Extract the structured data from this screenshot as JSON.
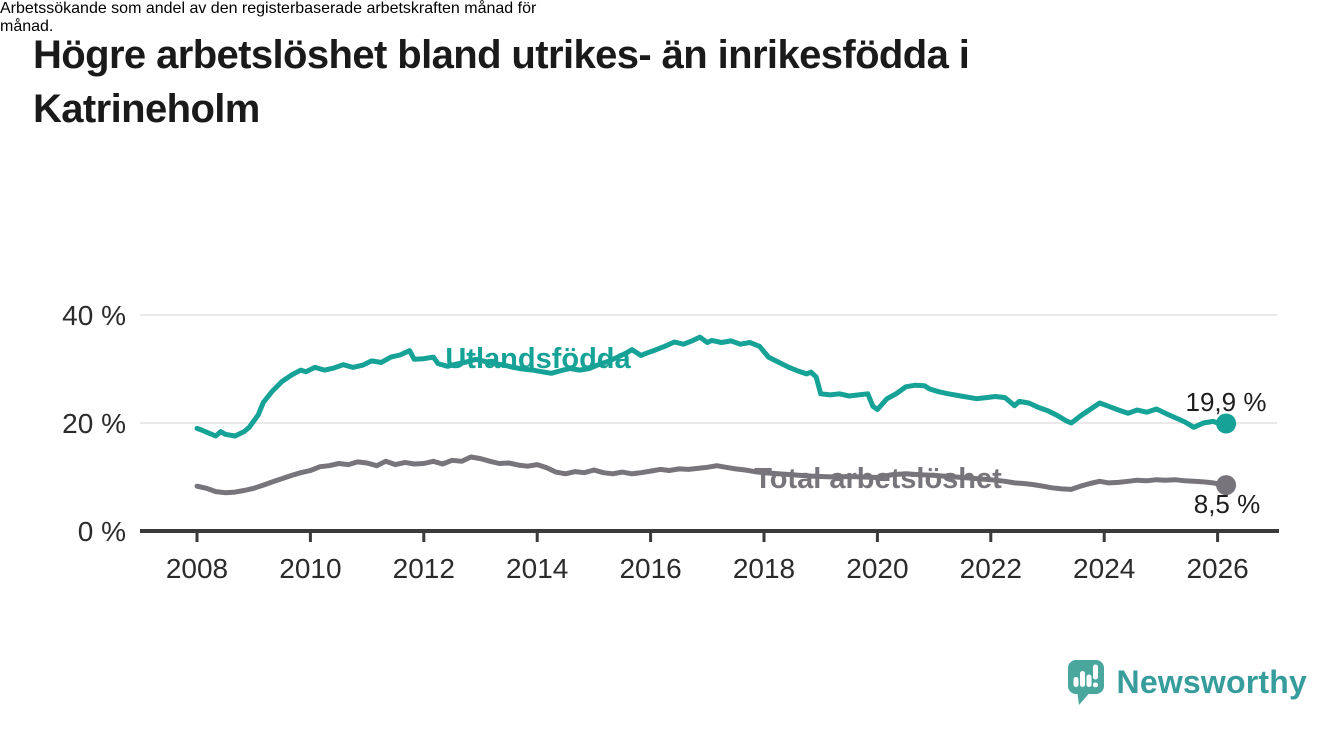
{
  "header": {
    "title_lines": [
      "Högre arbetslöshet bland utrikes- än inrikesfödda i",
      "Katrineholm"
    ],
    "subtitle_lines": [
      "Arbetssökande som andel av den registerbaserade arbetskraften månad för",
      "månad."
    ]
  },
  "chart_data": {
    "type": "line",
    "title": "Högre arbetslöshet bland utrikes- än inrikesfödda i Katrineholm",
    "subtitle": "Arbetssökande som andel av den registerbaserade arbetskraften månad för månad.",
    "unit": "%",
    "grid": "horizontal",
    "legend_position": "inline-labels",
    "text_color": "#2b2b2b",
    "grid_color": "#e2e2e2",
    "axis_color": "#3a3a3a",
    "x_axis": {
      "label_years": [
        2008,
        2010,
        2012,
        2014,
        2016,
        2018,
        2020,
        2022,
        2024,
        2026
      ],
      "range": [
        2007.0,
        2027.1
      ]
    },
    "y_axis": {
      "ticks": [
        {
          "value": 40,
          "label": "40 %"
        },
        {
          "value": 20,
          "label": "20 %"
        },
        {
          "value": 0,
          "label": "0 %"
        }
      ],
      "range": [
        0,
        43
      ]
    },
    "series": [
      {
        "name": "Utlandsfödda",
        "color": "#16A296",
        "end_label": "19,9 %",
        "last_value": 19.9,
        "points": [
          [
            2008.0,
            19.0
          ],
          [
            2008.08,
            18.7
          ],
          [
            2008.17,
            18.3
          ],
          [
            2008.33,
            17.6
          ],
          [
            2008.42,
            18.4
          ],
          [
            2008.5,
            17.9
          ],
          [
            2008.67,
            17.6
          ],
          [
            2008.83,
            18.4
          ],
          [
            2008.92,
            19.2
          ],
          [
            2009.08,
            21.5
          ],
          [
            2009.17,
            23.8
          ],
          [
            2009.33,
            25.9
          ],
          [
            2009.5,
            27.7
          ],
          [
            2009.67,
            28.9
          ],
          [
            2009.83,
            29.8
          ],
          [
            2009.92,
            29.5
          ],
          [
            2010.08,
            30.3
          ],
          [
            2010.25,
            29.8
          ],
          [
            2010.42,
            30.2
          ],
          [
            2010.58,
            30.8
          ],
          [
            2010.75,
            30.3
          ],
          [
            2010.92,
            30.7
          ],
          [
            2011.08,
            31.5
          ],
          [
            2011.25,
            31.2
          ],
          [
            2011.42,
            32.2
          ],
          [
            2011.58,
            32.6
          ],
          [
            2011.75,
            33.4
          ],
          [
            2011.83,
            31.8
          ],
          [
            2012.0,
            31.9
          ],
          [
            2012.17,
            32.2
          ],
          [
            2012.25,
            31.0
          ],
          [
            2012.42,
            30.5
          ],
          [
            2012.58,
            30.9
          ],
          [
            2012.75,
            31.3
          ],
          [
            2012.92,
            31.8
          ],
          [
            2013.08,
            31.4
          ],
          [
            2013.25,
            31.0
          ],
          [
            2013.42,
            30.7
          ],
          [
            2013.58,
            30.3
          ],
          [
            2013.75,
            30.0
          ],
          [
            2013.92,
            29.8
          ],
          [
            2014.08,
            29.5
          ],
          [
            2014.25,
            29.2
          ],
          [
            2014.42,
            29.7
          ],
          [
            2014.58,
            30.1
          ],
          [
            2014.75,
            29.8
          ],
          [
            2014.92,
            30.1
          ],
          [
            2015.08,
            30.8
          ],
          [
            2015.25,
            31.4
          ],
          [
            2015.42,
            32.2
          ],
          [
            2015.58,
            33.0
          ],
          [
            2015.67,
            33.6
          ],
          [
            2015.83,
            32.5
          ],
          [
            2015.92,
            32.9
          ],
          [
            2016.08,
            33.5
          ],
          [
            2016.25,
            34.2
          ],
          [
            2016.42,
            35.0
          ],
          [
            2016.58,
            34.6
          ],
          [
            2016.75,
            35.3
          ],
          [
            2016.87,
            35.9
          ],
          [
            2017.0,
            34.9
          ],
          [
            2017.08,
            35.3
          ],
          [
            2017.25,
            34.9
          ],
          [
            2017.42,
            35.2
          ],
          [
            2017.58,
            34.6
          ],
          [
            2017.75,
            34.9
          ],
          [
            2017.92,
            34.2
          ],
          [
            2018.08,
            32.2
          ],
          [
            2018.25,
            31.3
          ],
          [
            2018.42,
            30.4
          ],
          [
            2018.58,
            29.7
          ],
          [
            2018.75,
            29.1
          ],
          [
            2018.83,
            29.4
          ],
          [
            2018.92,
            28.5
          ],
          [
            2019.0,
            25.4
          ],
          [
            2019.17,
            25.2
          ],
          [
            2019.33,
            25.4
          ],
          [
            2019.5,
            25.0
          ],
          [
            2019.67,
            25.2
          ],
          [
            2019.83,
            25.4
          ],
          [
            2019.92,
            23.1
          ],
          [
            2020.0,
            22.5
          ],
          [
            2020.17,
            24.5
          ],
          [
            2020.33,
            25.4
          ],
          [
            2020.5,
            26.7
          ],
          [
            2020.67,
            27.0
          ],
          [
            2020.83,
            26.9
          ],
          [
            2020.92,
            26.3
          ],
          [
            2021.08,
            25.8
          ],
          [
            2021.25,
            25.4
          ],
          [
            2021.42,
            25.1
          ],
          [
            2021.58,
            24.8
          ],
          [
            2021.75,
            24.5
          ],
          [
            2021.92,
            24.7
          ],
          [
            2022.08,
            24.9
          ],
          [
            2022.25,
            24.7
          ],
          [
            2022.42,
            23.2
          ],
          [
            2022.5,
            24.0
          ],
          [
            2022.67,
            23.7
          ],
          [
            2022.83,
            22.9
          ],
          [
            2023.0,
            22.3
          ],
          [
            2023.17,
            21.4
          ],
          [
            2023.33,
            20.4
          ],
          [
            2023.42,
            20.0
          ],
          [
            2023.58,
            21.3
          ],
          [
            2023.75,
            22.5
          ],
          [
            2023.92,
            23.7
          ],
          [
            2024.08,
            23.1
          ],
          [
            2024.25,
            22.4
          ],
          [
            2024.42,
            21.8
          ],
          [
            2024.58,
            22.4
          ],
          [
            2024.75,
            22.0
          ],
          [
            2024.92,
            22.6
          ],
          [
            2025.08,
            21.8
          ],
          [
            2025.25,
            21.0
          ],
          [
            2025.42,
            20.2
          ],
          [
            2025.58,
            19.2
          ],
          [
            2025.75,
            20.0
          ],
          [
            2025.92,
            20.3
          ],
          [
            2026.08,
            19.7
          ],
          [
            2026.15,
            19.9
          ]
        ]
      },
      {
        "name": "Total arbetslöshet",
        "color": "#77757B",
        "end_label": "8,5 %",
        "last_value": 8.5,
        "points": [
          [
            2008.0,
            8.3
          ],
          [
            2008.17,
            7.9
          ],
          [
            2008.33,
            7.3
          ],
          [
            2008.5,
            7.1
          ],
          [
            2008.67,
            7.2
          ],
          [
            2008.83,
            7.5
          ],
          [
            2009.0,
            7.9
          ],
          [
            2009.17,
            8.5
          ],
          [
            2009.33,
            9.1
          ],
          [
            2009.5,
            9.7
          ],
          [
            2009.67,
            10.3
          ],
          [
            2009.83,
            10.8
          ],
          [
            2010.0,
            11.2
          ],
          [
            2010.17,
            11.9
          ],
          [
            2010.33,
            12.1
          ],
          [
            2010.5,
            12.5
          ],
          [
            2010.67,
            12.3
          ],
          [
            2010.83,
            12.8
          ],
          [
            2011.0,
            12.6
          ],
          [
            2011.17,
            12.1
          ],
          [
            2011.33,
            12.9
          ],
          [
            2011.5,
            12.3
          ],
          [
            2011.67,
            12.7
          ],
          [
            2011.83,
            12.4
          ],
          [
            2012.0,
            12.5
          ],
          [
            2012.17,
            12.9
          ],
          [
            2012.33,
            12.4
          ],
          [
            2012.5,
            13.1
          ],
          [
            2012.67,
            12.9
          ],
          [
            2012.83,
            13.7
          ],
          [
            2013.0,
            13.4
          ],
          [
            2013.17,
            12.9
          ],
          [
            2013.33,
            12.5
          ],
          [
            2013.5,
            12.6
          ],
          [
            2013.67,
            12.2
          ],
          [
            2013.83,
            12.0
          ],
          [
            2014.0,
            12.3
          ],
          [
            2014.17,
            11.7
          ],
          [
            2014.33,
            10.9
          ],
          [
            2014.5,
            10.6
          ],
          [
            2014.67,
            11.0
          ],
          [
            2014.83,
            10.8
          ],
          [
            2015.0,
            11.3
          ],
          [
            2015.17,
            10.8
          ],
          [
            2015.33,
            10.6
          ],
          [
            2015.5,
            10.9
          ],
          [
            2015.67,
            10.6
          ],
          [
            2015.83,
            10.8
          ],
          [
            2016.0,
            11.1
          ],
          [
            2016.17,
            11.4
          ],
          [
            2016.33,
            11.2
          ],
          [
            2016.5,
            11.5
          ],
          [
            2016.67,
            11.4
          ],
          [
            2016.83,
            11.6
          ],
          [
            2017.0,
            11.8
          ],
          [
            2017.17,
            12.1
          ],
          [
            2017.33,
            11.8
          ],
          [
            2017.5,
            11.5
          ],
          [
            2017.67,
            11.3
          ],
          [
            2017.83,
            11.0
          ],
          [
            2018.0,
            10.8
          ],
          [
            2018.25,
            10.6
          ],
          [
            2018.5,
            10.4
          ],
          [
            2018.75,
            10.2
          ],
          [
            2019.0,
            10.1
          ],
          [
            2019.25,
            10.0
          ],
          [
            2019.5,
            10.1
          ],
          [
            2019.75,
            10.0
          ],
          [
            2020.0,
            9.9
          ],
          [
            2020.25,
            10.4
          ],
          [
            2020.5,
            10.6
          ],
          [
            2020.75,
            10.4
          ],
          [
            2021.0,
            10.3
          ],
          [
            2021.25,
            10.1
          ],
          [
            2021.5,
            9.9
          ],
          [
            2021.75,
            9.7
          ],
          [
            2022.0,
            9.5
          ],
          [
            2022.25,
            9.2
          ],
          [
            2022.42,
            8.9
          ],
          [
            2022.58,
            8.8
          ],
          [
            2022.75,
            8.6
          ],
          [
            2022.92,
            8.3
          ],
          [
            2023.08,
            8.0
          ],
          [
            2023.25,
            7.8
          ],
          [
            2023.42,
            7.7
          ],
          [
            2023.58,
            8.3
          ],
          [
            2023.75,
            8.8
          ],
          [
            2023.92,
            9.2
          ],
          [
            2024.08,
            8.9
          ],
          [
            2024.25,
            9.0
          ],
          [
            2024.42,
            9.2
          ],
          [
            2024.58,
            9.4
          ],
          [
            2024.75,
            9.3
          ],
          [
            2024.92,
            9.5
          ],
          [
            2025.08,
            9.4
          ],
          [
            2025.25,
            9.5
          ],
          [
            2025.42,
            9.3
          ],
          [
            2025.58,
            9.2
          ],
          [
            2025.75,
            9.1
          ],
          [
            2025.92,
            8.9
          ],
          [
            2026.08,
            8.6
          ],
          [
            2026.15,
            8.5
          ]
        ]
      }
    ]
  },
  "footer": {
    "brand": "Newsworthy",
    "brand_color": "#379C9C",
    "icon": "newsworthy-speech-bubble-chart-icon",
    "icon_color": "#4AA79E"
  }
}
